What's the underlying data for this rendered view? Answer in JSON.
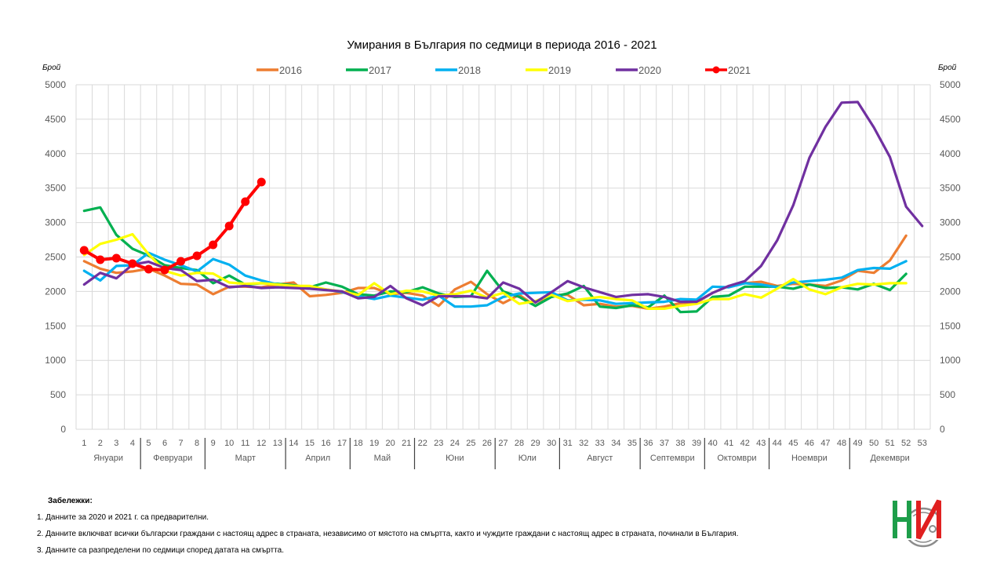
{
  "chart_data": {
    "type": "line",
    "title": "Умирания в България по седмици в периода 2016 - 2021",
    "ylabel_left": "Брой",
    "ylabel_right": "Брой",
    "ylim": [
      0,
      5000
    ],
    "yticks": [
      0,
      500,
      1000,
      1500,
      2000,
      2500,
      3000,
      3500,
      4000,
      4500,
      5000
    ],
    "grid": true,
    "legend_position": "top",
    "x": [
      1,
      2,
      3,
      4,
      5,
      6,
      7,
      8,
      9,
      10,
      11,
      12,
      13,
      14,
      15,
      16,
      17,
      18,
      19,
      20,
      21,
      22,
      23,
      24,
      25,
      26,
      27,
      28,
      29,
      30,
      31,
      32,
      33,
      34,
      35,
      36,
      37,
      38,
      39,
      40,
      41,
      42,
      43,
      44,
      45,
      46,
      47,
      48,
      49,
      50,
      51,
      52,
      53
    ],
    "months": [
      {
        "label": "Януари",
        "from": 1,
        "to": 4
      },
      {
        "label": "Февруари",
        "from": 5,
        "to": 8
      },
      {
        "label": "Март",
        "from": 9,
        "to": 13
      },
      {
        "label": "Април",
        "from": 14,
        "to": 17
      },
      {
        "label": "Май",
        "from": 18,
        "to": 21
      },
      {
        "label": "Юни",
        "from": 22,
        "to": 26
      },
      {
        "label": "Юли",
        "from": 27,
        "to": 30
      },
      {
        "label": "Август",
        "from": 31,
        "to": 35
      },
      {
        "label": "Септември",
        "from": 36,
        "to": 39
      },
      {
        "label": "Октомври",
        "from": 40,
        "to": 43
      },
      {
        "label": "Ноември",
        "from": 44,
        "to": 48
      },
      {
        "label": "Декември",
        "from": 49,
        "to": 53
      }
    ],
    "series": [
      {
        "name": "2016",
        "color": "#ED7D31",
        "markers": false,
        "values": [
          2440,
          2330,
          2270,
          2290,
          2330,
          2230,
          2110,
          2100,
          1960,
          2070,
          2070,
          2060,
          2100,
          2130,
          1930,
          1950,
          1980,
          2050,
          2050,
          1960,
          1980,
          1940,
          1790,
          2030,
          2140,
          1960,
          1830,
          1950,
          1790,
          1950,
          1950,
          1800,
          1820,
          1780,
          1790,
          1750,
          1780,
          1830,
          1840,
          1980,
          2080,
          2120,
          2140,
          2080,
          2110,
          2100,
          2080,
          2160,
          2300,
          2270,
          2450,
          2810,
          null
        ]
      },
      {
        "name": "2017",
        "color": "#00B050",
        "markers": false,
        "values": [
          3170,
          3220,
          2820,
          2620,
          2520,
          2380,
          2340,
          2310,
          2120,
          2230,
          2100,
          2120,
          2110,
          2090,
          2060,
          2130,
          2070,
          1960,
          1940,
          2000,
          1990,
          2060,
          1970,
          1920,
          1930,
          2300,
          2000,
          1920,
          1790,
          1920,
          1970,
          2080,
          1780,
          1760,
          1800,
          1770,
          1940,
          1700,
          1710,
          1920,
          1940,
          2070,
          2070,
          2070,
          2040,
          2100,
          2050,
          2060,
          2030,
          2110,
          2020,
          2255,
          null
        ]
      },
      {
        "name": "2018",
        "color": "#00B0F0",
        "markers": false,
        "values": [
          2300,
          2160,
          2370,
          2380,
          2560,
          2460,
          2380,
          2290,
          2470,
          2390,
          2230,
          2160,
          2100,
          2060,
          2040,
          2030,
          1990,
          1930,
          1890,
          1940,
          1910,
          1880,
          1940,
          1780,
          1780,
          1800,
          1920,
          1970,
          1980,
          1990,
          1870,
          1880,
          1870,
          1820,
          1830,
          1840,
          1850,
          1890,
          1880,
          2070,
          2060,
          2120,
          2100,
          2060,
          2130,
          2150,
          2170,
          2200,
          2310,
          2340,
          2330,
          2440,
          null
        ]
      },
      {
        "name": "2019",
        "color": "#FFFF00",
        "markers": false,
        "values": [
          2530,
          2690,
          2750,
          2830,
          2540,
          2300,
          2230,
          2270,
          2260,
          2130,
          2110,
          2120,
          2100,
          2080,
          2080,
          2030,
          2000,
          1950,
          2120,
          1960,
          2010,
          2000,
          1940,
          1960,
          2010,
          1910,
          1980,
          1820,
          1860,
          1950,
          1860,
          1890,
          1920,
          1890,
          1870,
          1750,
          1750,
          1790,
          1820,
          1890,
          1890,
          1960,
          1910,
          2040,
          2180,
          2030,
          1960,
          2060,
          2110,
          2100,
          2120,
          2120,
          null
        ]
      },
      {
        "name": "2020",
        "color": "#7030A0",
        "markers": false,
        "values": [
          2100,
          2270,
          2190,
          2390,
          2430,
          2340,
          2310,
          2150,
          2170,
          2060,
          2080,
          2050,
          2060,
          2050,
          2040,
          2020,
          2000,
          1900,
          1920,
          2080,
          1900,
          1800,
          1930,
          1930,
          1930,
          1900,
          2130,
          2040,
          1840,
          1990,
          2150,
          2060,
          1990,
          1920,
          1950,
          1960,
          1920,
          1850,
          1850,
          1980,
          2080,
          2150,
          2370,
          2740,
          3250,
          3940,
          4390,
          4740,
          4750,
          4380,
          3950,
          3230,
          2950
        ]
      },
      {
        "name": "2021",
        "color": "#FF0000",
        "markers": true,
        "values": [
          2597,
          2460,
          2483,
          2403,
          2323,
          2312,
          2437,
          2517,
          2677,
          2950,
          3303,
          3588,
          null,
          null,
          null,
          null,
          null,
          null,
          null,
          null,
          null,
          null,
          null,
          null,
          null,
          null,
          null,
          null,
          null,
          null,
          null,
          null,
          null,
          null,
          null,
          null,
          null,
          null,
          null,
          null,
          null,
          null,
          null,
          null,
          null,
          null,
          null,
          null,
          null,
          null,
          null,
          null,
          null
        ]
      }
    ]
  },
  "notes": {
    "heading": "Забележки:",
    "items": [
      "1. Данните за 2020 и 2021 г. са предварителни.",
      "2. Данните включват всички български граждани с настоящ адрес в страната, независимо от мястото на смъртта, както и чуждите граждани с настоящ адрес в страната, починали в България.",
      "3. Данните са разпределени по седмици според датата на смъртта."
    ]
  },
  "logo": {
    "letters": "НСИ",
    "green": "#1E9E4A",
    "red": "#E02020",
    "gray": "#8C8C8C"
  }
}
